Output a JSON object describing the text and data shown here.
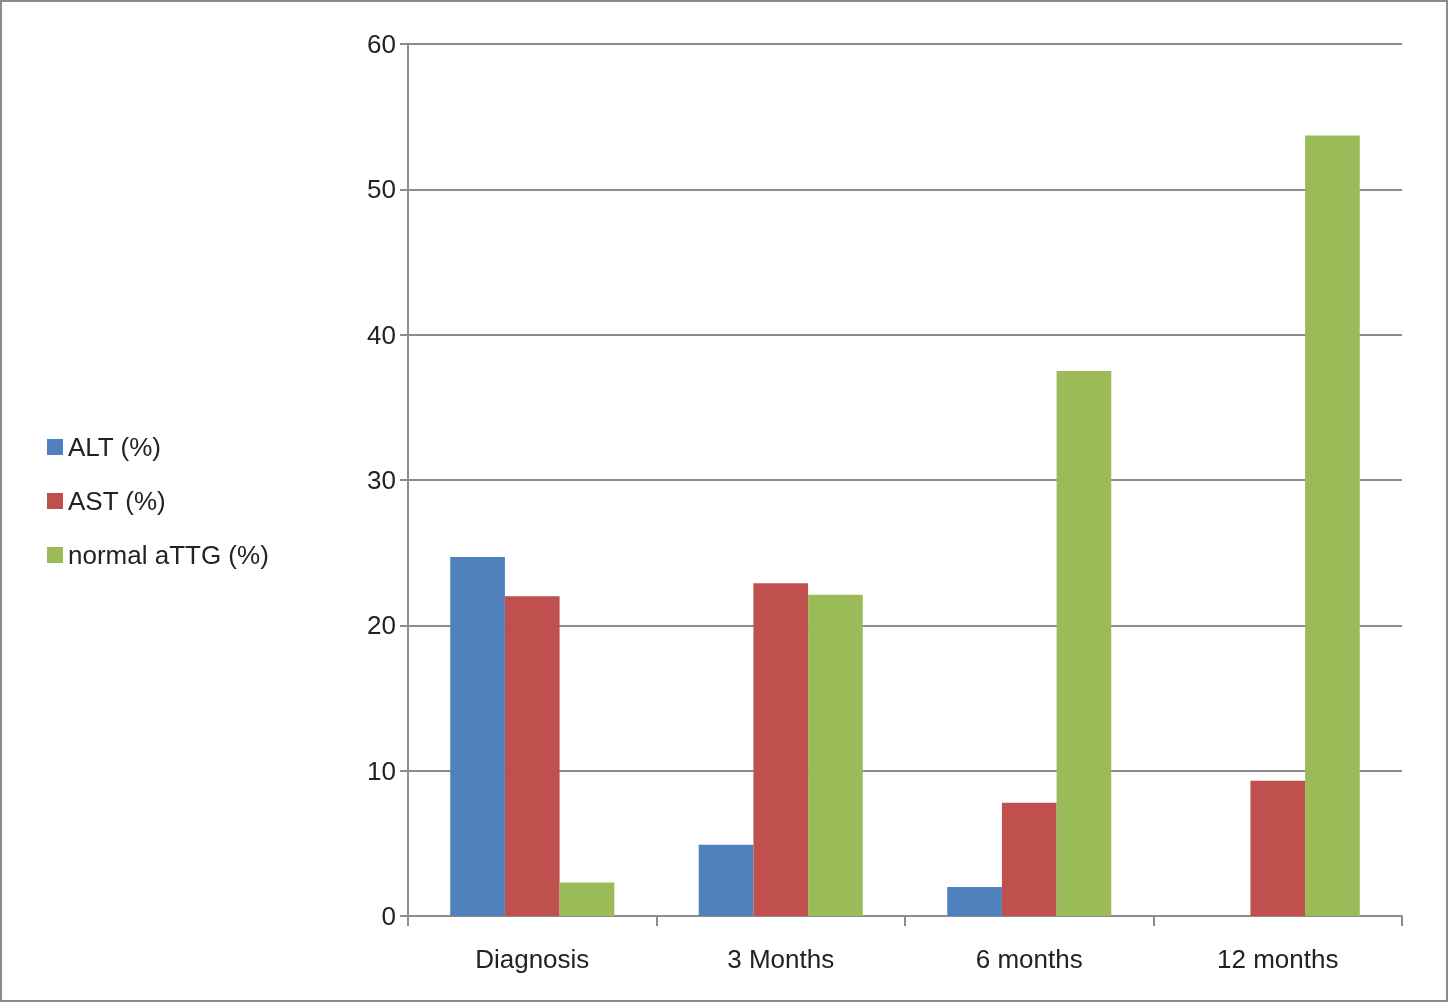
{
  "chart_data": {
    "type": "bar",
    "categories": [
      "Diagnosis",
      "3 Months",
      "6 months",
      "12 months"
    ],
    "series": [
      {
        "name": "ALT (%)",
        "color": "#4f81bd",
        "values": [
          24.7,
          4.9,
          2.0,
          0
        ]
      },
      {
        "name": "AST (%)",
        "color": "#c0504d",
        "values": [
          22.0,
          22.9,
          7.8,
          9.3
        ]
      },
      {
        "name": "normal aTTG (%)",
        "color": "#9bbb59",
        "values": [
          2.3,
          22.1,
          37.5,
          53.7
        ]
      }
    ],
    "ylim": [
      0,
      60
    ],
    "yticks": [
      0,
      10,
      20,
      30,
      40,
      50,
      60
    ],
    "grid": "y",
    "legend": "left"
  }
}
